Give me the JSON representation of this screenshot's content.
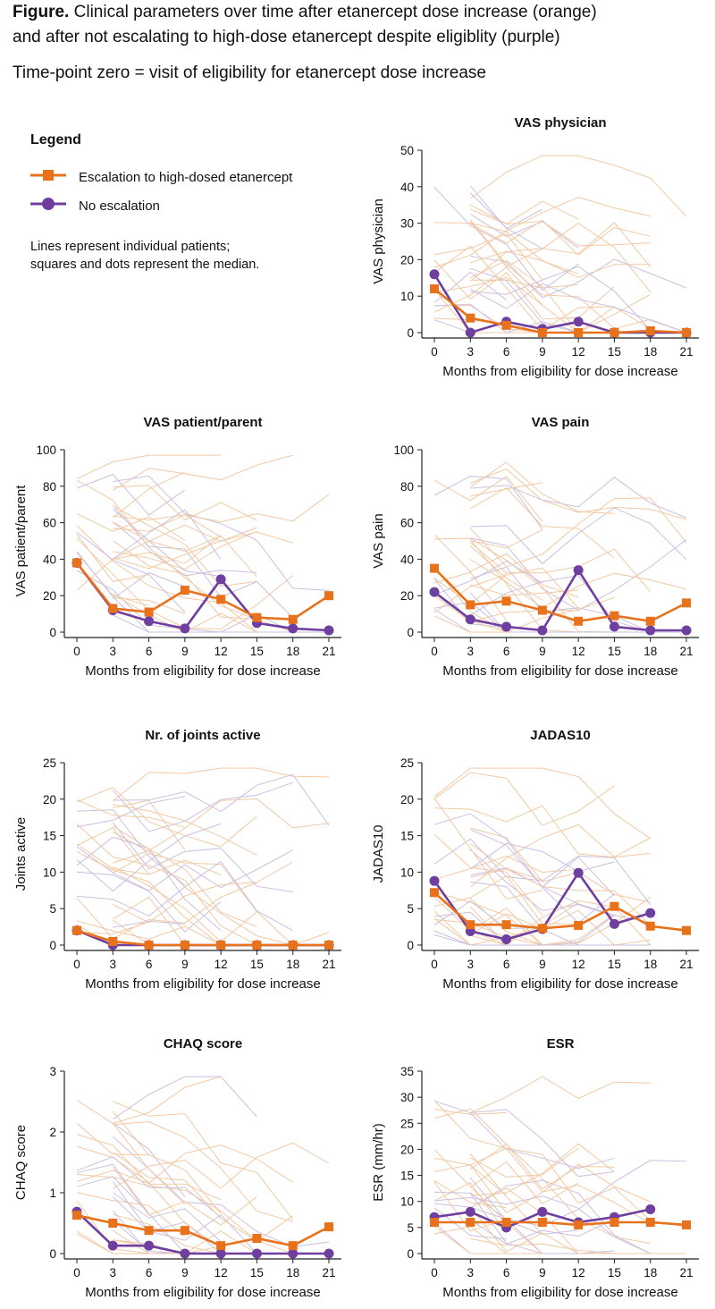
{
  "figure": {
    "caption_bold": "Figure.",
    "caption_line1": " Clinical parameters over time after etanercept dose increase (orange)",
    "caption_line2": "and after not escalating to high-dose etanercept despite eligiblity (purple)",
    "subcaption": "Time-point zero = visit of eligibility for etanercept dose increase"
  },
  "legend": {
    "title": "Legend",
    "items": [
      {
        "label": "Escalation to high-dosed etanercept",
        "color": "#e8721c",
        "marker": "square"
      },
      {
        "label": "No escalation",
        "color": "#6f3fa0",
        "marker": "circle"
      }
    ],
    "note_line1": "Lines represent individual patients;",
    "note_line2": "squares and dots represent the median."
  },
  "colors": {
    "escalation": "#e8721c",
    "no_escalation": "#6f3fa0",
    "escalation_thin": "#f2c9a4",
    "no_escalation_thin": "#cbbfe0"
  },
  "chart_data": [
    {
      "type": "line",
      "title": "VAS physician",
      "ylabel": "VAS physician",
      "xlabel": "Months from eligibility for dose increase",
      "x": [
        0,
        3,
        6,
        9,
        12,
        15,
        18,
        21
      ],
      "ylim": [
        0,
        50
      ],
      "yticks": [
        0,
        10,
        20,
        30,
        40,
        50
      ],
      "series": [
        {
          "name": "Escalation to high-dosed etanercept",
          "values": [
            12,
            4,
            2,
            0,
            0,
            0,
            0.5,
            0
          ]
        },
        {
          "name": "No escalation",
          "values": [
            16,
            0,
            3,
            1,
            3,
            0,
            0,
            0
          ]
        }
      ]
    },
    {
      "type": "line",
      "title": "VAS patient/parent",
      "ylabel": "VAS patient/parent",
      "xlabel": "Months from eligibility for dose increase",
      "x": [
        0,
        3,
        6,
        9,
        12,
        15,
        18,
        21
      ],
      "ylim": [
        0,
        100
      ],
      "yticks": [
        0,
        20,
        40,
        60,
        80,
        100
      ],
      "series": [
        {
          "name": "Escalation to high-dosed etanercept",
          "values": [
            38,
            13,
            11,
            23,
            18,
            8,
            7,
            20
          ]
        },
        {
          "name": "No escalation",
          "values": [
            38,
            12,
            6,
            2,
            29,
            5,
            2,
            1
          ]
        }
      ]
    },
    {
      "type": "line",
      "title": "VAS pain",
      "ylabel": "VAS pain",
      "xlabel": "Months from eligibility for dose increase",
      "x": [
        0,
        3,
        6,
        9,
        12,
        15,
        18,
        21
      ],
      "ylim": [
        0,
        100
      ],
      "yticks": [
        0,
        20,
        40,
        60,
        80,
        100
      ],
      "series": [
        {
          "name": "Escalation to high-dosed etanercept",
          "values": [
            35,
            15,
            17,
            12,
            6,
            9,
            6,
            16
          ]
        },
        {
          "name": "No escalation",
          "values": [
            22,
            7,
            3,
            1,
            34,
            3,
            1,
            1
          ]
        }
      ]
    },
    {
      "type": "line",
      "title": "Nr. of joints active",
      "ylabel": "Joints active",
      "xlabel": "Months from eligibility for dose increase",
      "x": [
        0,
        3,
        6,
        9,
        12,
        15,
        18,
        21
      ],
      "ylim": [
        0,
        25
      ],
      "yticks": [
        0,
        5,
        10,
        15,
        20,
        25
      ],
      "series": [
        {
          "name": "Escalation to high-dosed etanercept",
          "values": [
            2,
            0.5,
            0,
            0,
            0,
            0,
            0,
            0
          ]
        },
        {
          "name": "No escalation",
          "values": [
            2,
            0,
            0,
            0,
            0,
            0,
            0,
            0
          ]
        }
      ]
    },
    {
      "type": "line",
      "title": "JADAS10",
      "ylabel": "JADAS10",
      "xlabel": "Months from eligibility for dose increase",
      "x": [
        0,
        3,
        6,
        9,
        12,
        15,
        18,
        21
      ],
      "ylim": [
        0,
        25
      ],
      "yticks": [
        0,
        5,
        10,
        15,
        20,
        25
      ],
      "series": [
        {
          "name": "Escalation to high-dosed etanercept",
          "values": [
            7.2,
            2.8,
            2.8,
            2.3,
            2.7,
            5.3,
            2.6,
            2
          ]
        },
        {
          "name": "No escalation",
          "values": [
            8.8,
            1.9,
            0.8,
            2.2,
            9.9,
            2.9,
            4.4,
            null
          ]
        }
      ]
    },
    {
      "type": "line",
      "title": "CHAQ score",
      "ylabel": "CHAQ score",
      "xlabel": "Months from eligibility for dose increase",
      "x": [
        0,
        3,
        6,
        9,
        12,
        15,
        18,
        21
      ],
      "ylim": [
        0,
        3
      ],
      "yticks": [
        0,
        1,
        2,
        3
      ],
      "series": [
        {
          "name": "Escalation to high-dosed etanercept",
          "values": [
            0.63,
            0.5,
            0.38,
            0.38,
            0.13,
            0.25,
            0.13,
            0.44
          ]
        },
        {
          "name": "No escalation",
          "values": [
            0.69,
            0.13,
            0.13,
            0,
            0,
            0,
            0,
            0
          ]
        }
      ]
    },
    {
      "type": "line",
      "title": "ESR",
      "ylabel": "ESR (mm/hr)",
      "xlabel": "Months from eligibility for dose increase",
      "x": [
        0,
        3,
        6,
        9,
        12,
        15,
        18,
        21
      ],
      "ylim": [
        0,
        35
      ],
      "yticks": [
        0,
        5,
        10,
        15,
        20,
        25,
        30,
        35
      ],
      "series": [
        {
          "name": "Escalation to high-dosed etanercept",
          "values": [
            6,
            6,
            6,
            6,
            5.5,
            6,
            6,
            5.5
          ]
        },
        {
          "name": "No escalation",
          "values": [
            7,
            8,
            5,
            8,
            6,
            7,
            8.5,
            null
          ]
        }
      ]
    }
  ]
}
